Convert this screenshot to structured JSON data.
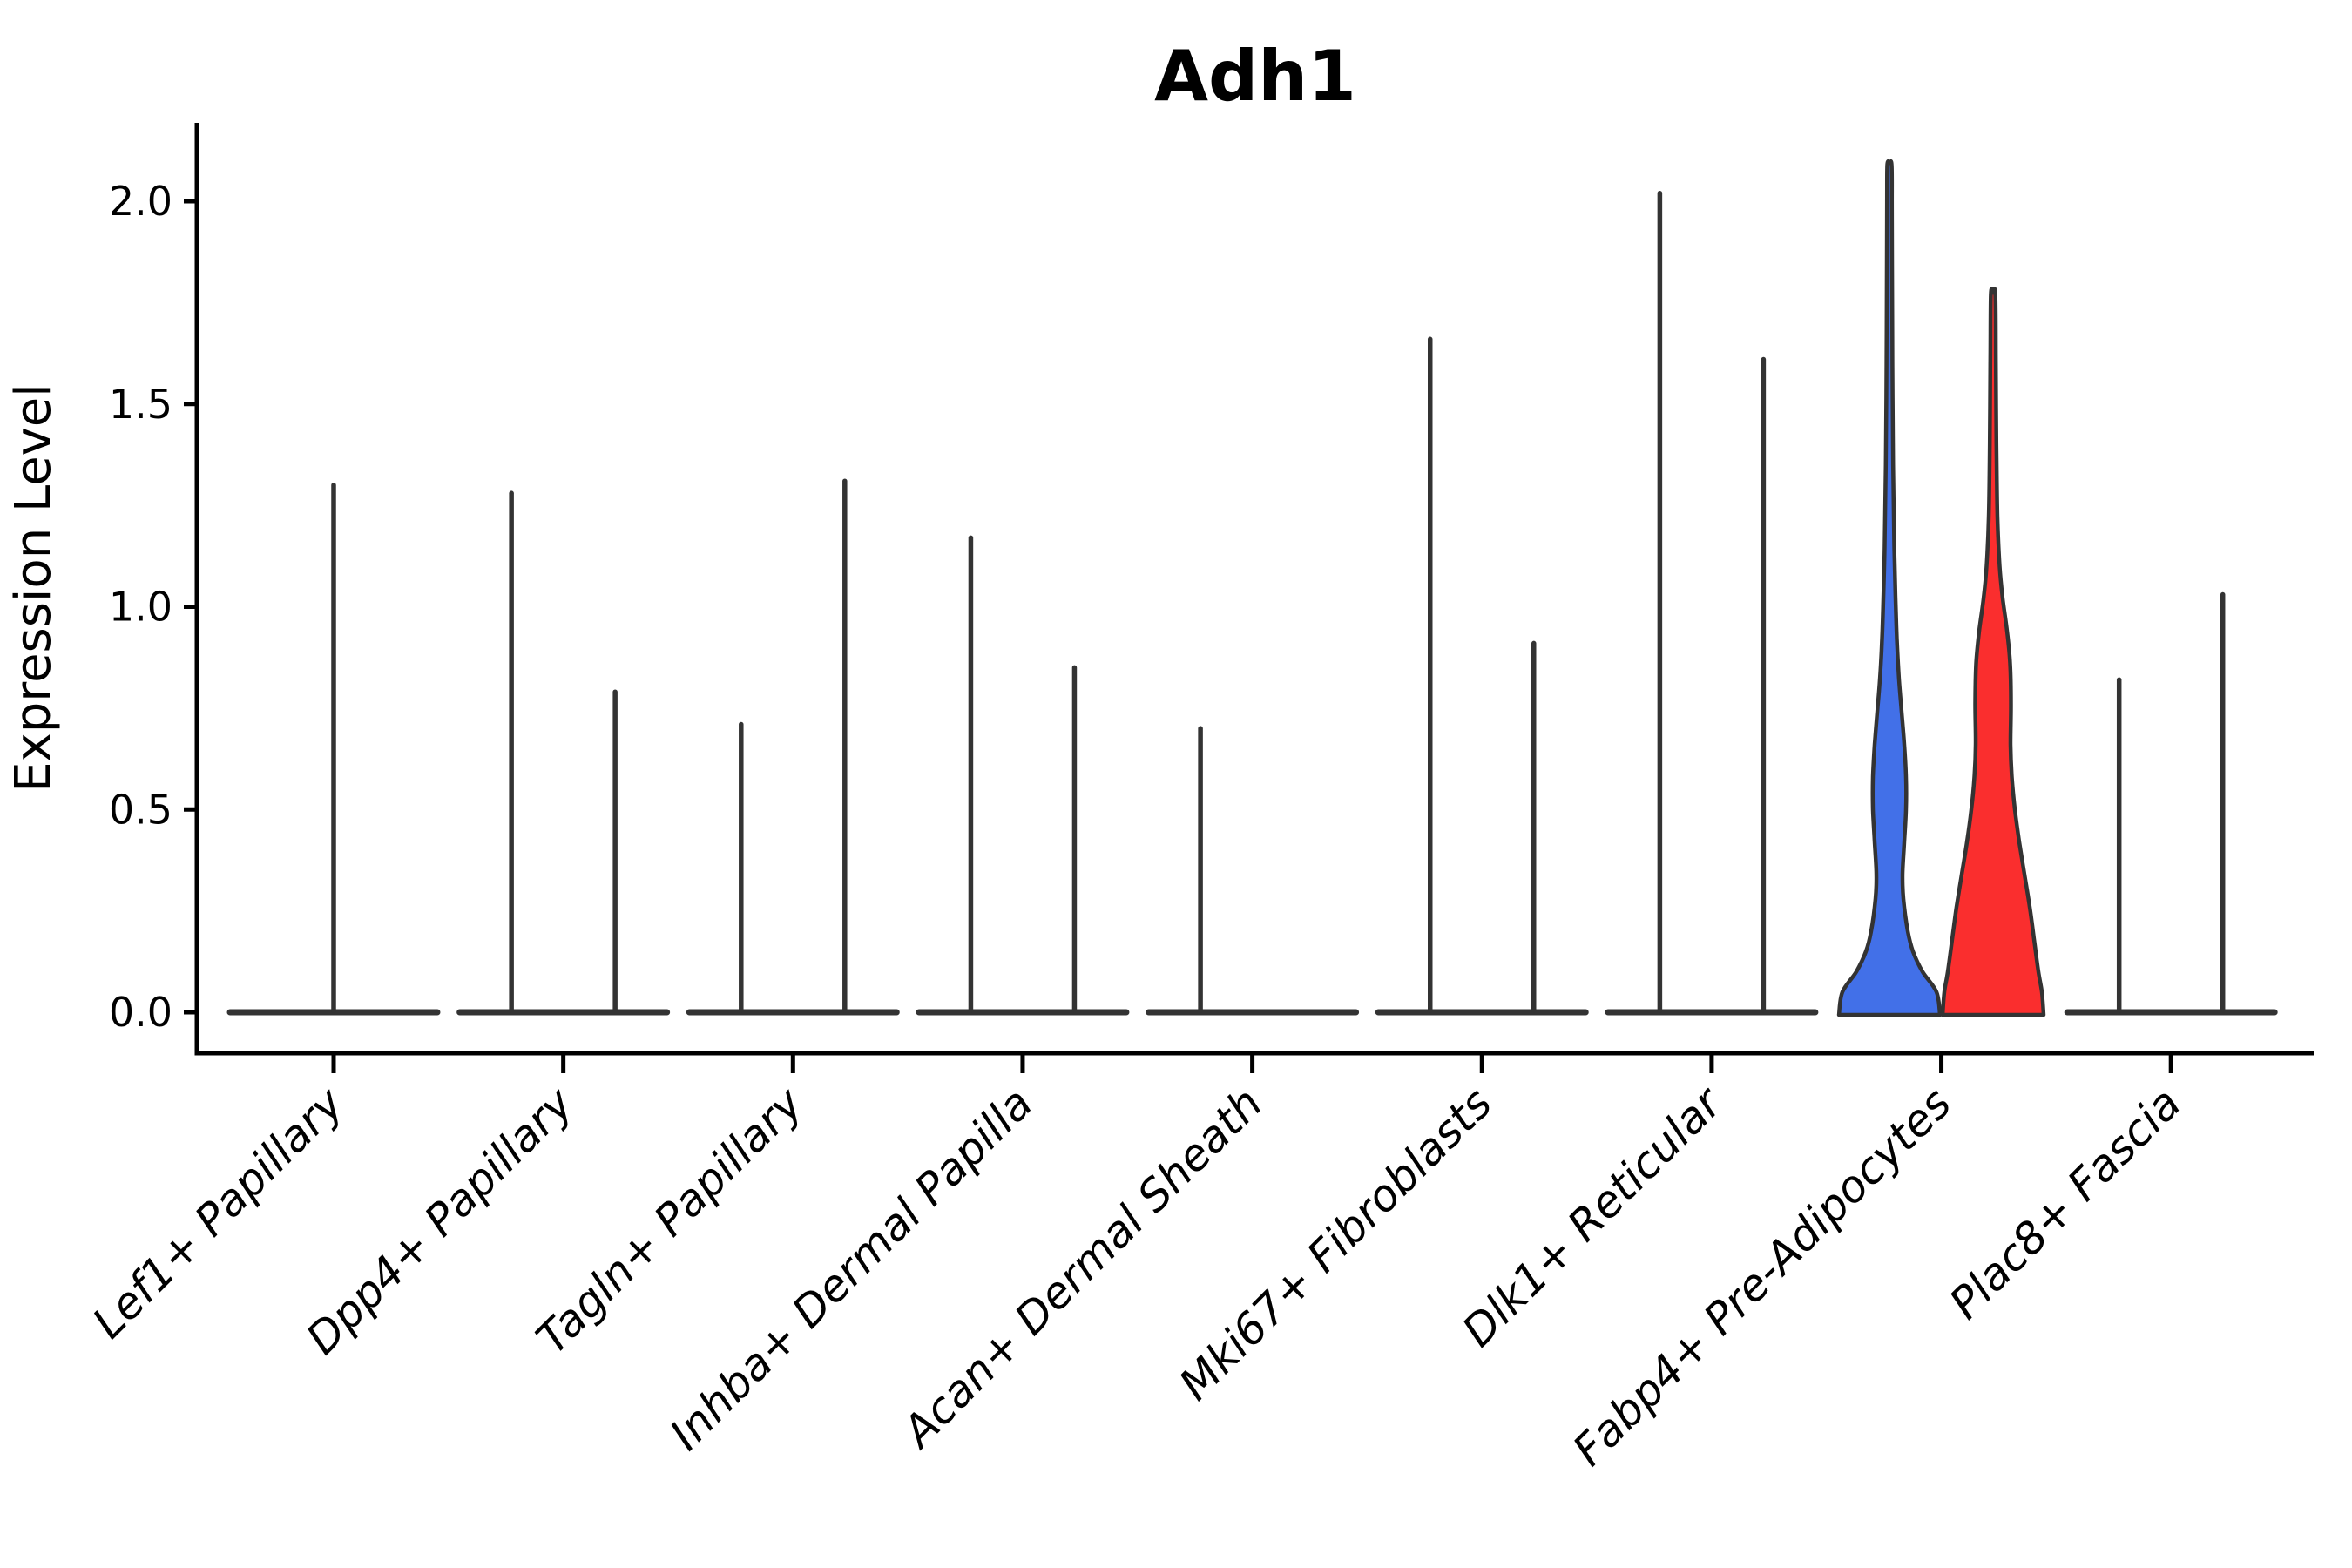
{
  "title": "Adh1",
  "axes": {
    "ylabel": "Expression Level",
    "ytick_labels": [
      "0.0",
      "0.5",
      "1.0",
      "1.5",
      "2.0"
    ]
  },
  "colors": {
    "violin_outline": "#333333",
    "axis": "#000000",
    "blue_fill": "#4270E8",
    "red_fill": "#FA2E2E"
  },
  "chart_data": {
    "type": "violin",
    "title": "Adh1",
    "xlabel": "",
    "ylabel": "Expression Level",
    "ylim": [
      -0.1,
      2.2
    ],
    "yticks": [
      0.0,
      0.5,
      1.0,
      1.5,
      2.0
    ],
    "grid": false,
    "legend": "none",
    "description": "Split violin plot of Adh1 expression per fibroblast cluster; most violins collapse to a flat base at 0 with a thin spike to the max expression value; Fabp4+ Pre-Adipocytes shows two filled violins (blue = left group, red = right group).",
    "categories": [
      {
        "label": "Lef1+ Papillary",
        "violins": [
          {
            "side": "center",
            "style": "spike",
            "max": 1.3
          }
        ]
      },
      {
        "label": "Dpp4+ Papillary",
        "violins": [
          {
            "side": "left",
            "style": "spike",
            "max": 1.28
          },
          {
            "side": "right",
            "style": "spike",
            "max": 0.79
          }
        ]
      },
      {
        "label": "Tagln+ Papillary",
        "violins": [
          {
            "side": "left",
            "style": "spike",
            "max": 0.71
          },
          {
            "side": "right",
            "style": "spike",
            "max": 1.31
          }
        ]
      },
      {
        "label": "Inhba+ Dermal Papilla",
        "violins": [
          {
            "side": "left",
            "style": "spike",
            "max": 1.17
          },
          {
            "side": "right",
            "style": "spike",
            "max": 0.85
          }
        ]
      },
      {
        "label": "Acan+ Dermal Sheath",
        "violins": [
          {
            "side": "left",
            "style": "spike",
            "max": 0.7
          }
        ]
      },
      {
        "label": "Mki67+ Fibroblasts",
        "violins": [
          {
            "side": "left",
            "style": "spike",
            "max": 1.66
          },
          {
            "side": "right",
            "style": "spike",
            "max": 0.91
          }
        ]
      },
      {
        "label": "Dlk1+ Reticular",
        "violins": [
          {
            "side": "left",
            "style": "spike",
            "max": 2.02
          },
          {
            "side": "right",
            "style": "spike",
            "max": 1.61
          }
        ]
      },
      {
        "label": "Fabp4+ Pre-Adipocytes",
        "violins": [
          {
            "side": "left",
            "style": "filled",
            "max": 2.09,
            "fill": "#4270E8",
            "width_profile": [
              [
                0.0,
                58
              ],
              [
                0.05,
                54
              ],
              [
                0.1,
                38
              ],
              [
                0.15,
                27
              ],
              [
                0.2,
                21
              ],
              [
                0.28,
                16
              ],
              [
                0.34,
                15
              ],
              [
                0.42,
                17
              ],
              [
                0.5,
                19
              ],
              [
                0.58,
                19
              ],
              [
                0.66,
                17
              ],
              [
                0.74,
                14
              ],
              [
                0.82,
                11
              ],
              [
                0.92,
                8.5
              ],
              [
                1.02,
                7
              ],
              [
                1.15,
                5.5
              ],
              [
                1.35,
                4.2
              ],
              [
                1.6,
                3.4
              ],
              [
                1.85,
                3.0
              ],
              [
                2.0,
                2.8
              ],
              [
                2.09,
                2.5
              ]
            ]
          },
          {
            "side": "right",
            "style": "filled",
            "max": 1.77,
            "fill": "#FA2E2E",
            "width_profile": [
              [
                0.0,
                58
              ],
              [
                0.05,
                56
              ],
              [
                0.1,
                52
              ],
              [
                0.18,
                47
              ],
              [
                0.26,
                42
              ],
              [
                0.34,
                36
              ],
              [
                0.42,
                30
              ],
              [
                0.5,
                25
              ],
              [
                0.58,
                21.5
              ],
              [
                0.66,
                20
              ],
              [
                0.76,
                20.5
              ],
              [
                0.86,
                19.5
              ],
              [
                0.94,
                16
              ],
              [
                1.02,
                11
              ],
              [
                1.1,
                7.5
              ],
              [
                1.22,
                5
              ],
              [
                1.4,
                3.8
              ],
              [
                1.6,
                3.2
              ],
              [
                1.77,
                2.6
              ]
            ]
          }
        ]
      },
      {
        "label": "Plac8+ Fascia",
        "violins": [
          {
            "side": "left",
            "style": "spike",
            "max": 0.82
          },
          {
            "side": "right",
            "style": "spike",
            "max": 1.03
          }
        ]
      }
    ]
  }
}
